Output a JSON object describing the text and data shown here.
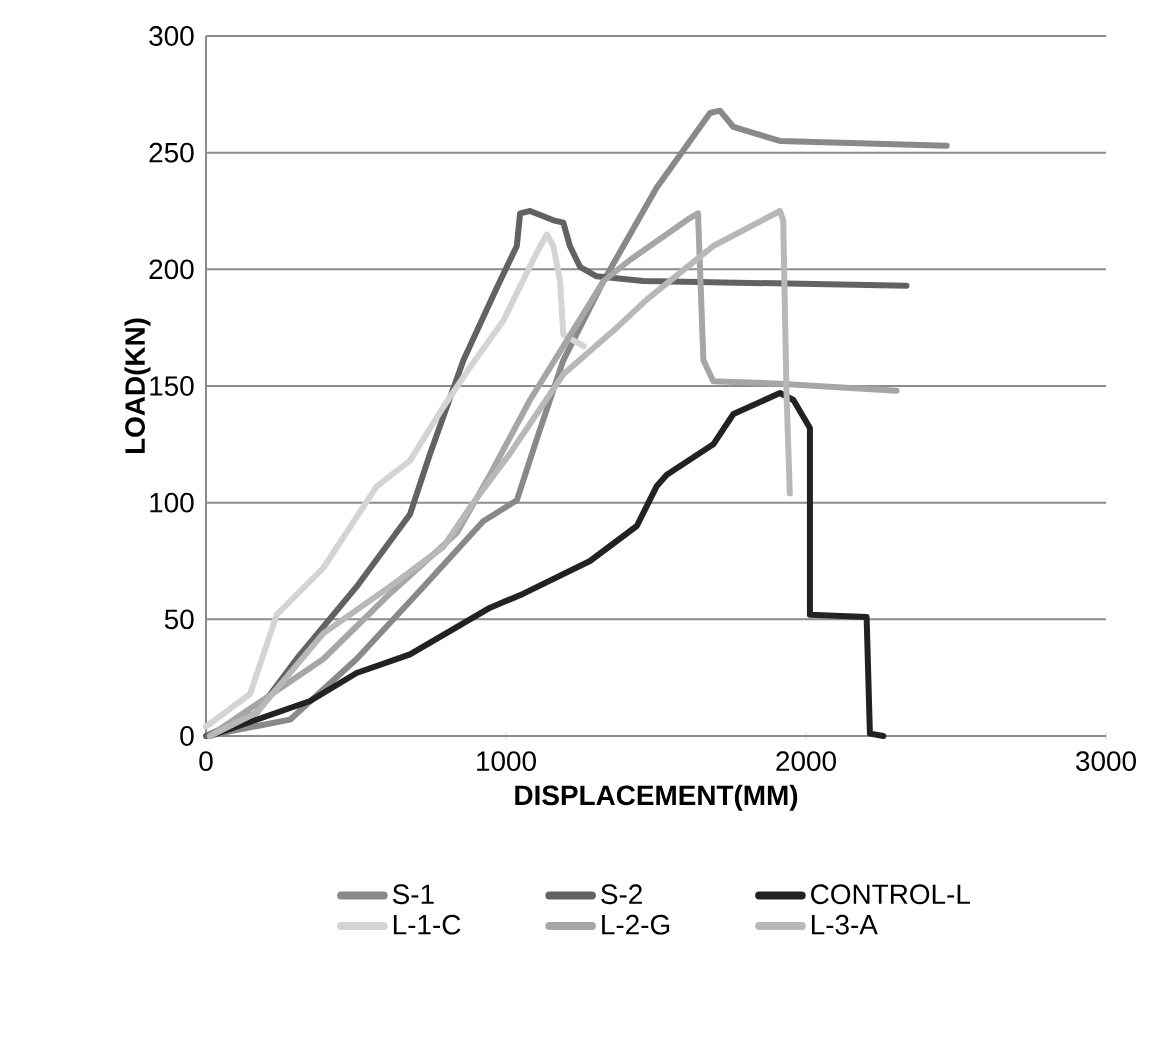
{
  "chart_data": {
    "type": "line",
    "xlabel": "DISPLACEMENT(MM)",
    "ylabel": "LOAD(KN)",
    "xlim": [
      0,
      3000
    ],
    "xticks": [
      0,
      1000,
      2000,
      3000
    ],
    "ylim": [
      0,
      300
    ],
    "yticks": [
      0,
      50,
      100,
      150,
      200,
      250,
      300
    ],
    "grid": "y",
    "legend": "bottom",
    "line_style": "solid",
    "marker": "none",
    "series": [
      {
        "name": "S-1",
        "color": "#898989",
        "x": [
          0,
          280,
          502,
          725,
          924,
          1036,
          1102,
          1191,
          1325,
          1502,
          1680,
          1713,
          1758,
          1913,
          2469
        ],
        "values": [
          0,
          7,
          33,
          64,
          92,
          101,
          127,
          161,
          195,
          235,
          267,
          268,
          261,
          255,
          253
        ]
      },
      {
        "name": "S-2",
        "color": "#626262",
        "x": [
          0,
          169,
          302,
          502,
          680,
          747,
          858,
          969,
          1036,
          1047,
          1080,
          1158,
          1191,
          1213,
          1247,
          1302,
          1458,
          2335
        ],
        "values": [
          0,
          10,
          33,
          64,
          95,
          121,
          161,
          192,
          210,
          224,
          225,
          221,
          220,
          210,
          201,
          197,
          195,
          193
        ]
      },
      {
        "name": "CONTROL-L",
        "color": "#222222",
        "x": [
          13,
          347,
          502,
          680,
          947,
          1058,
          1280,
          1436,
          1502,
          1536,
          1691,
          1758,
          1913,
          1958,
          2013,
          2013,
          2202,
          2213,
          2258
        ],
        "values": [
          0,
          15,
          27,
          35,
          55,
          61,
          75,
          90,
          107,
          112,
          125,
          138,
          147,
          144,
          132,
          52,
          51,
          1,
          0
        ]
      },
      {
        "name": "L-1-C",
        "color": "#d4d4d4",
        "x": [
          0,
          147,
          236,
          391,
          569,
          680,
          791,
          880,
          991,
          1102,
          1136,
          1158,
          1180,
          1191,
          1260
        ],
        "values": [
          4,
          18,
          52,
          72,
          107,
          118,
          141,
          158,
          178,
          207,
          215,
          210,
          195,
          172,
          167
        ]
      },
      {
        "name": "L-2-G",
        "color": "#a6a6a6",
        "x": [
          13,
          391,
          613,
          836,
          947,
          1080,
          1191,
          1325,
          1413,
          1613,
          1640,
          1658,
          1691,
          1913,
          2302
        ],
        "values": [
          0,
          33,
          61,
          87,
          112,
          144,
          167,
          195,
          204,
          222,
          224,
          161,
          152,
          151,
          148
        ]
      },
      {
        "name": "L-3-A",
        "color": "#b8b8b8",
        "x": [
          13,
          169,
          391,
          613,
          791,
          880,
          1013,
          1191,
          1369,
          1469,
          1691,
          1913,
          1924,
          1935,
          1946
        ],
        "values": [
          0,
          10,
          44,
          64,
          81,
          98,
          121,
          155,
          175,
          187,
          210,
          225,
          221,
          147,
          104
        ]
      }
    ]
  }
}
